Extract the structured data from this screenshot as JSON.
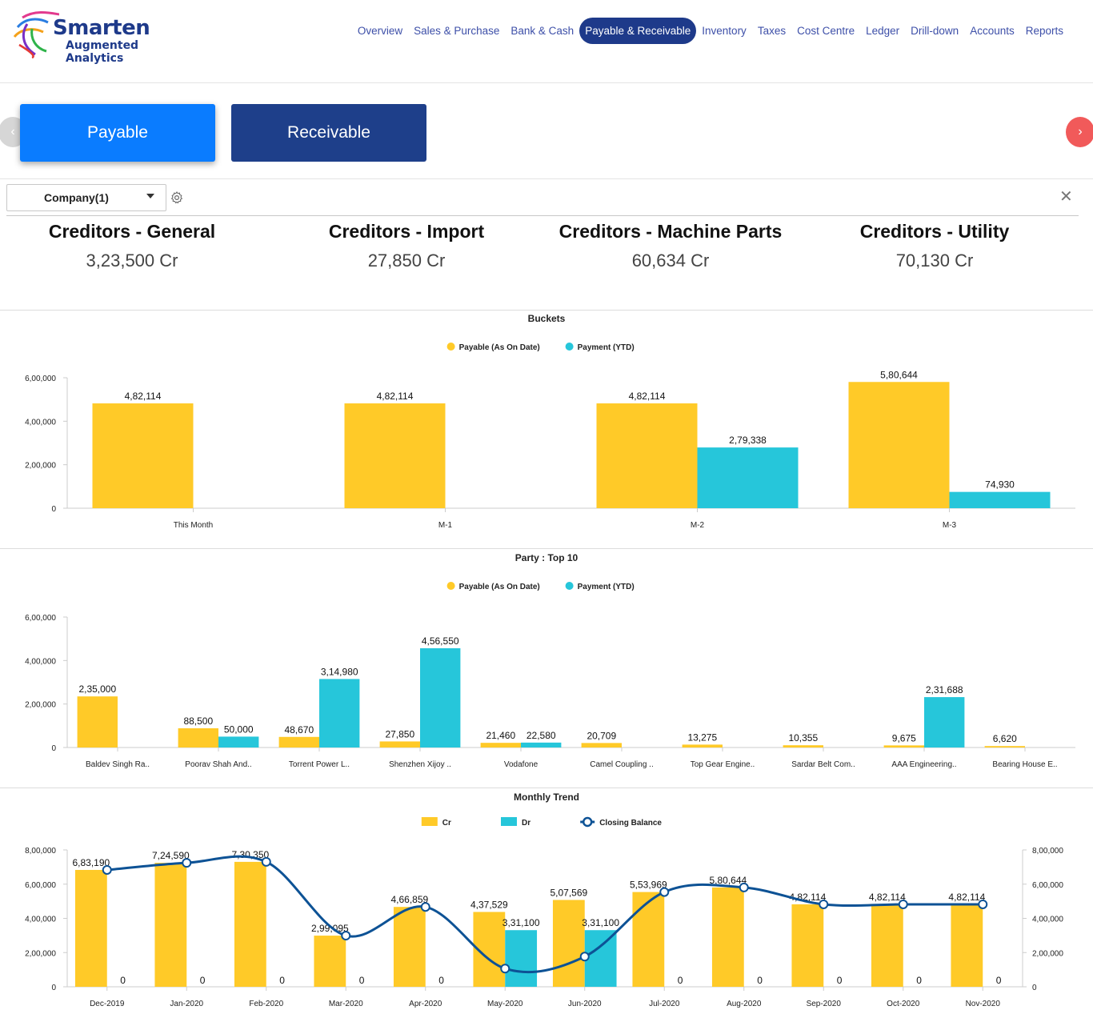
{
  "brand": {
    "name": "Smarten",
    "subtitle": "Augmented Analytics"
  },
  "nav": {
    "items": [
      {
        "label": "Overview"
      },
      {
        "label": "Sales & Purchase"
      },
      {
        "label": "Bank & Cash"
      },
      {
        "label": "Payable & Receivable",
        "active": true
      },
      {
        "label": "Inventory"
      },
      {
        "label": "Taxes"
      },
      {
        "label": "Cost Centre"
      },
      {
        "label": "Ledger"
      },
      {
        "label": "Drill-down"
      },
      {
        "label": "Accounts"
      },
      {
        "label": "Reports"
      }
    ]
  },
  "tabs": {
    "payable": "Payable",
    "receivable": "Receivable",
    "prev_icon": "chevron-left-icon",
    "next_icon": "chevron-right-icon"
  },
  "filter": {
    "company": "Company(1)",
    "settings_icon": "gear-icon",
    "close_icon": "close-icon",
    "close_glyph": "✕"
  },
  "kpis": [
    {
      "title": "Creditors - General",
      "value": "3,23,500 Cr"
    },
    {
      "title": "Creditors - Import",
      "value": "27,850 Cr"
    },
    {
      "title": "Creditors - Machine Parts",
      "value": "60,634 Cr"
    },
    {
      "title": "Creditors - Utility",
      "value": "70,130 Cr"
    }
  ],
  "colors": {
    "payable": "#ffca28",
    "payment": "#26c6da",
    "closing": "#0d5295",
    "axis": "#cccccc"
  },
  "chart_data": [
    {
      "id": "buckets",
      "type": "bar",
      "title": "Buckets",
      "categories": [
        "This Month",
        "M-1",
        "M-2",
        "M-3"
      ],
      "series": [
        {
          "name": "Payable (As On Date)",
          "values": [
            482114,
            482114,
            482114,
            580644
          ],
          "labels": [
            "4,82,114",
            "4,82,114",
            "4,82,114",
            "5,80,644"
          ]
        },
        {
          "name": "Payment (YTD)",
          "values": [
            0,
            0,
            279338,
            74930
          ],
          "labels": [
            "",
            "",
            "2,79,338",
            "74,930"
          ]
        }
      ],
      "ylim": [
        0,
        600000
      ],
      "yticks": [
        0,
        200000,
        400000,
        600000
      ],
      "ytick_labels": [
        "0",
        "2,00,000",
        "4,00,000",
        "6,00,000"
      ],
      "legend": "top-center",
      "grid": false
    },
    {
      "id": "party",
      "type": "bar",
      "title": "Party : Top 10",
      "categories": [
        "Baldev Singh Ra..",
        "Poorav Shah And..",
        "Torrent Power L..",
        "Shenzhen Xijoy ..",
        "Vodafone",
        "Camel Coupling ..",
        "Top Gear Engine..",
        "Sardar Belt Com..",
        "AAA Engineering..",
        "Bearing House E.."
      ],
      "series": [
        {
          "name": "Payable (As On Date)",
          "values": [
            235000,
            88500,
            48670,
            27850,
            21460,
            20709,
            13275,
            10355,
            9675,
            6620
          ],
          "labels": [
            "2,35,000",
            "88,500",
            "48,670",
            "27,850",
            "21,460",
            "20,709",
            "13,275",
            "10,355",
            "9,675",
            "6,620"
          ]
        },
        {
          "name": "Payment (YTD)",
          "values": [
            0,
            50000,
            314980,
            456550,
            22580,
            0,
            0,
            0,
            231688,
            0
          ],
          "labels": [
            "",
            "50,000",
            "3,14,980",
            "4,56,550",
            "22,580",
            "",
            "",
            "",
            "2,31,688",
            ""
          ]
        }
      ],
      "ylim": [
        0,
        600000
      ],
      "yticks": [
        0,
        200000,
        400000,
        600000
      ],
      "ytick_labels": [
        "0",
        "2,00,000",
        "4,00,000",
        "6,00,000"
      ],
      "legend": "top-center",
      "grid": false
    },
    {
      "id": "trend",
      "type": "bar",
      "title": "Monthly Trend",
      "categories": [
        "Dec-2019",
        "Jan-2020",
        "Feb-2020",
        "Mar-2020",
        "Apr-2020",
        "May-2020",
        "Jun-2020",
        "Jul-2020",
        "Aug-2020",
        "Sep-2020",
        "Oct-2020",
        "Nov-2020"
      ],
      "series": [
        {
          "name": "Cr",
          "kind": "bar",
          "values": [
            683190,
            724590,
            730350,
            299095,
            466859,
            437529,
            507569,
            553969,
            580644,
            482114,
            482114,
            482114
          ],
          "labels": [
            "6,83,190",
            "7,24,590",
            "7,30,350",
            "2,99,095",
            "4,66,859",
            "4,37,529",
            "5,07,569",
            "5,53,969",
            "5,80,644",
            "4,82,114",
            "4,82,114",
            "4,82,114"
          ]
        },
        {
          "name": "Dr",
          "kind": "bar",
          "values": [
            0,
            0,
            0,
            0,
            0,
            331100,
            331100,
            0,
            0,
            0,
            0,
            0
          ],
          "labels": [
            "0",
            "0",
            "0",
            "0",
            "0",
            "3,31,100",
            "3,31,100",
            "0",
            "0",
            "0",
            "0",
            "0"
          ]
        },
        {
          "name": "Closing Balance",
          "kind": "line",
          "values": [
            683190,
            724590,
            730350,
            299095,
            466859,
            106429,
            176469,
            553969,
            580644,
            482114,
            482114,
            482114
          ]
        }
      ],
      "ylim": [
        0,
        800000
      ],
      "yticks": [
        0,
        200000,
        400000,
        600000,
        800000
      ],
      "ytick_labels": [
        "0",
        "2,00,000",
        "4,00,000",
        "6,00,000",
        "8,00,000"
      ],
      "secondary_yticks": [
        "0",
        "2,00,000",
        "4,00,000",
        "6,00,000",
        "8,00,000"
      ],
      "legend": "top-center",
      "grid": false
    }
  ]
}
